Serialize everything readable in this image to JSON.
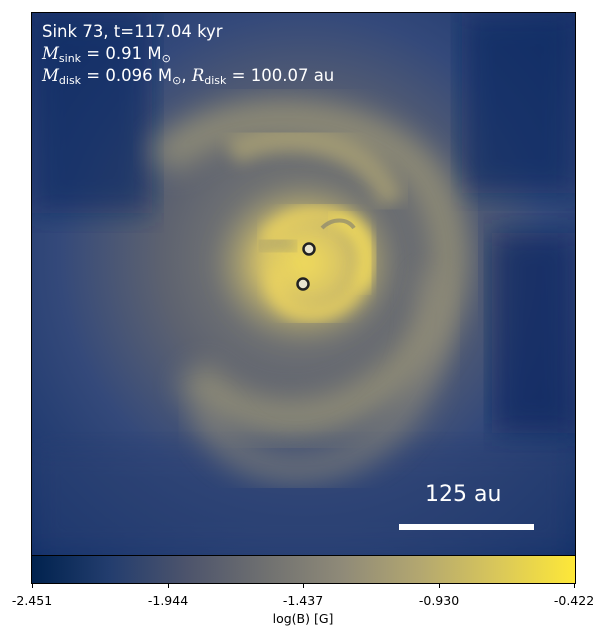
{
  "annotation": {
    "line1": "Sink 73, t=117.04 kyr",
    "mass_sink_symbol": "M",
    "mass_sink_sub": "sink",
    "mass_sink_value": "= 0.91 M",
    "mass_sink_unit_sub": "⊙",
    "mass_disk_symbol": "M",
    "mass_disk_sub": "disk",
    "mass_disk_value": "= 0.096 M",
    "mass_disk_unit_sub": "⊙",
    "radius_disk_symbol": "R",
    "radius_disk_sub": "disk",
    "radius_disk_value": "= 100.07 au"
  },
  "scale_bar": {
    "label": "125 au"
  },
  "colorbar": {
    "label": "log(B) [G]",
    "ticks": [
      "-2.451",
      "-1.944",
      "-1.437",
      "-0.930",
      "-0.422"
    ],
    "colormap": [
      "#00224e",
      "#233d6e",
      "#4d546c",
      "#6f7070",
      "#8f8a78",
      "#b3a770",
      "#d9c75a",
      "#fee838"
    ]
  },
  "sinks": [
    {
      "name": "sink-upper"
    },
    {
      "name": "sink-lower"
    }
  ]
}
